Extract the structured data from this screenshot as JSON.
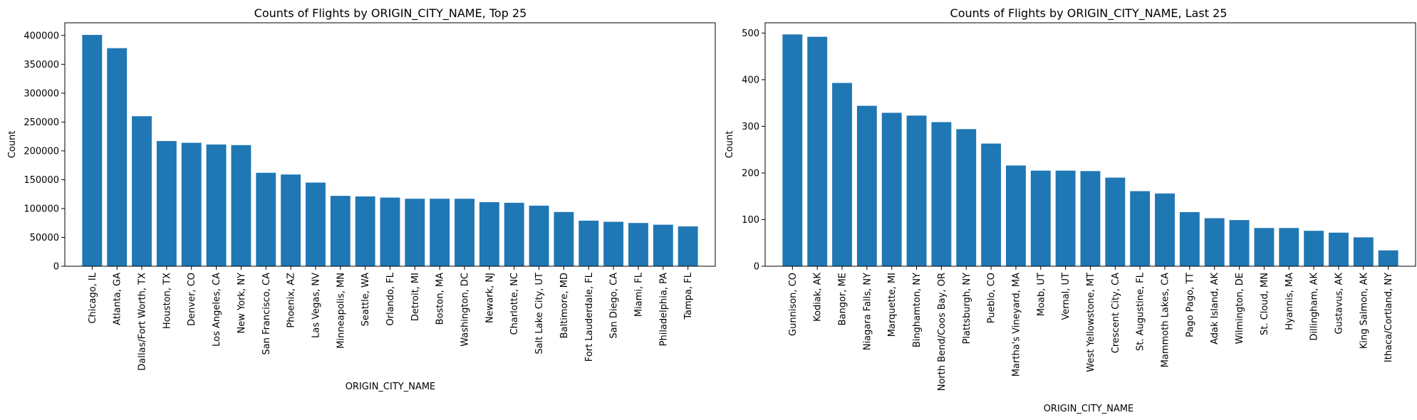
{
  "chart_data": [
    {
      "type": "bar",
      "title": "Counts of Flights by ORIGIN_CITY_NAME, Top 25",
      "xlabel": "ORIGIN_CITY_NAME",
      "ylabel": "Count",
      "ylim": [
        0,
        422000
      ],
      "yticks": [
        0,
        50000,
        100000,
        150000,
        200000,
        250000,
        300000,
        350000,
        400000
      ],
      "ytick_labels": [
        "0",
        "50000",
        "100000",
        "150000",
        "200000",
        "250000",
        "300000",
        "350000",
        "400000"
      ],
      "bar_color": "#1f77b4",
      "grid": false,
      "categories": [
        "Chicago, IL",
        "Atlanta, GA",
        "Dallas/Fort Worth, TX",
        "Houston, TX",
        "Denver, CO",
        "Los Angeles, CA",
        "New York, NY",
        "San Francisco, CA",
        "Phoenix, AZ",
        "Las Vegas, NV",
        "Minneapolis, MN",
        "Seattle, WA",
        "Orlando, FL",
        "Detroit, MI",
        "Boston, MA",
        "Washington, DC",
        "Newark, NJ",
        "Charlotte, NC",
        "Salt Lake City, UT",
        "Baltimore, MD",
        "Fort Lauderdale, FL",
        "San Diego, CA",
        "Miami, FL",
        "Philadelphia, PA",
        "Tampa, FL"
      ],
      "values": [
        401000,
        378000,
        260000,
        217000,
        214000,
        211000,
        210000,
        162000,
        159000,
        145000,
        122000,
        121000,
        119000,
        117000,
        117000,
        117000,
        111000,
        110000,
        105000,
        94000,
        79000,
        77000,
        75000,
        72000,
        69000
      ]
    },
    {
      "type": "bar",
      "title": "Counts of Flights by ORIGIN_CITY_NAME, Last 25",
      "xlabel": "ORIGIN_CITY_NAME",
      "ylabel": "Count",
      "ylim": [
        0,
        522
      ],
      "yticks": [
        0,
        100,
        200,
        300,
        400,
        500
      ],
      "ytick_labels": [
        "0",
        "100",
        "200",
        "300",
        "400",
        "500"
      ],
      "bar_color": "#1f77b4",
      "grid": false,
      "categories": [
        "Gunnison, CO",
        "Kodiak, AK",
        "Bangor, ME",
        "Niagara Falls, NY",
        "Marquette, MI",
        "Binghamton, NY",
        "North Bend/Coos Bay, OR",
        "Plattsburgh, NY",
        "Pueblo, CO",
        "Martha's Vineyard, MA",
        "Moab, UT",
        "Vernal, UT",
        "West Yellowstone, MT",
        "Crescent City, CA",
        "St. Augustine, FL",
        "Mammoth Lakes, CA",
        "Pago Pago, TT",
        "Adak Island, AK",
        "Wilmington, DE",
        "St. Cloud, MN",
        "Hyannis, MA",
        "Dillingham, AK",
        "Gustavus, AK",
        "King Salmon, AK",
        "Ithaca/Cortland, NY"
      ],
      "values": [
        497,
        492,
        393,
        344,
        329,
        323,
        309,
        294,
        263,
        216,
        205,
        205,
        204,
        190,
        161,
        156,
        116,
        103,
        99,
        82,
        82,
        76,
        72,
        62,
        34
      ]
    }
  ]
}
